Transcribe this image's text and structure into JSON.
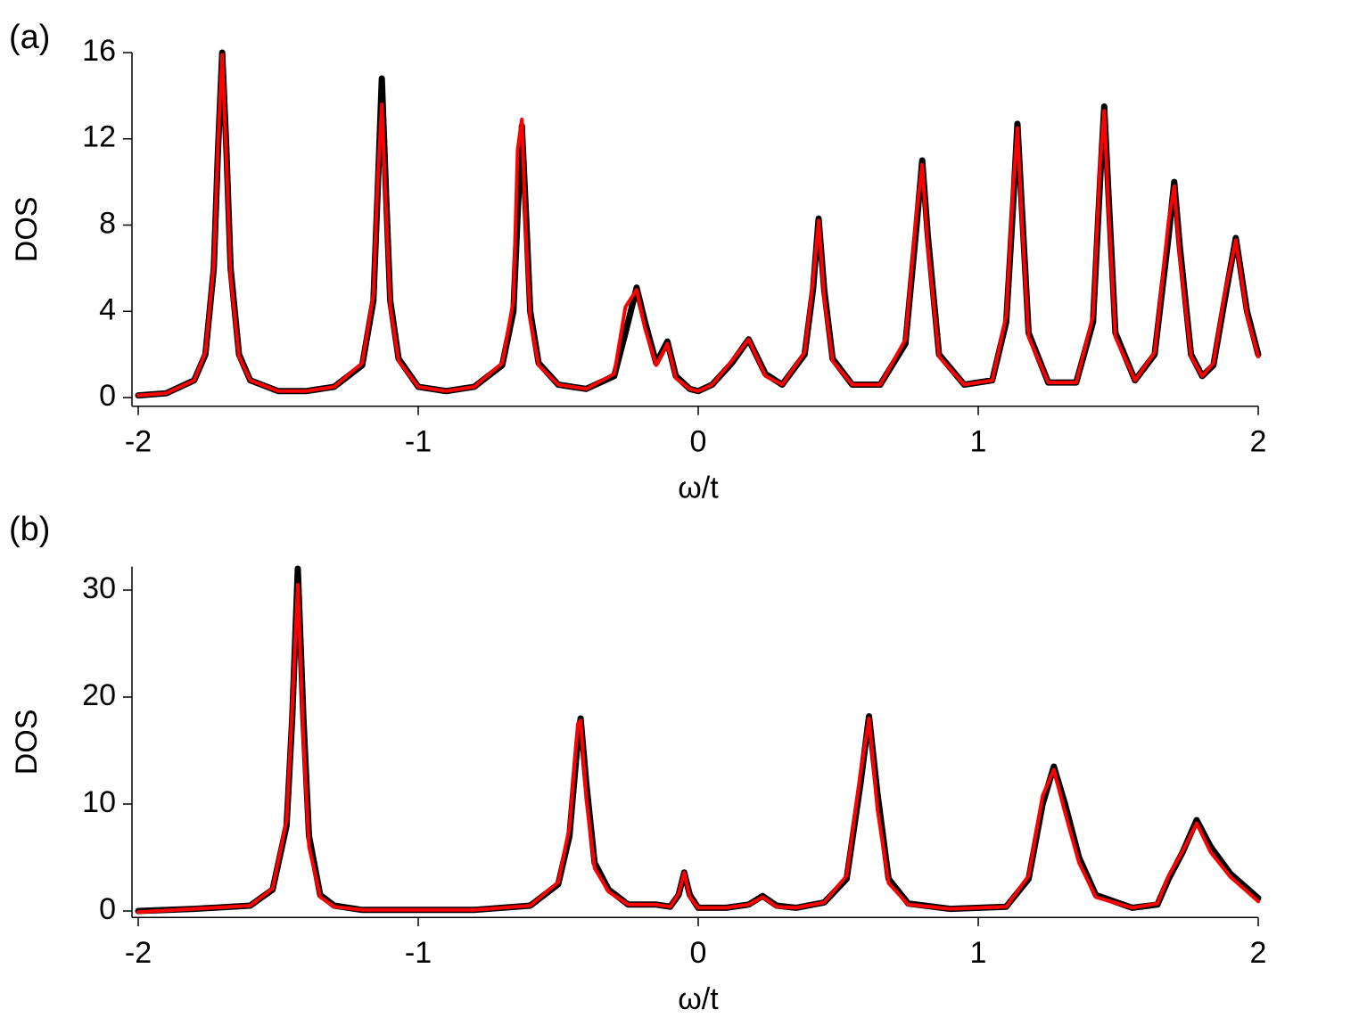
{
  "chart_data": [
    {
      "type": "line",
      "panel_label": "(a)",
      "x_label": "ω/t",
      "y_label": "DOS",
      "xlim": [
        -2,
        2
      ],
      "ylim": [
        -0.4,
        16
      ],
      "xticks": [
        -2,
        -1,
        0,
        1,
        2
      ],
      "yticks": [
        0,
        4,
        8,
        12,
        16
      ],
      "x": [
        -2.0,
        -1.9,
        -1.8,
        -1.76,
        -1.73,
        -1.715,
        -1.7,
        -1.685,
        -1.67,
        -1.64,
        -1.6,
        -1.5,
        -1.4,
        -1.3,
        -1.2,
        -1.16,
        -1.145,
        -1.13,
        -1.115,
        -1.1,
        -1.07,
        -1.0,
        -0.9,
        -0.8,
        -0.7,
        -0.66,
        -0.645,
        -0.63,
        -0.615,
        -0.6,
        -0.57,
        -0.5,
        -0.4,
        -0.3,
        -0.26,
        -0.22,
        -0.19,
        -0.15,
        -0.11,
        -0.08,
        -0.03,
        0.0,
        0.05,
        0.12,
        0.18,
        0.24,
        0.3,
        0.38,
        0.41,
        0.43,
        0.45,
        0.48,
        0.55,
        0.65,
        0.74,
        0.78,
        0.8,
        0.82,
        0.86,
        0.95,
        1.05,
        1.1,
        1.125,
        1.14,
        1.155,
        1.18,
        1.25,
        1.35,
        1.41,
        1.435,
        1.45,
        1.465,
        1.49,
        1.56,
        1.63,
        1.68,
        1.7,
        1.72,
        1.76,
        1.8,
        1.84,
        1.88,
        1.92,
        1.96,
        2.0
      ],
      "series": [
        {
          "color": "#000000",
          "values": [
            0.1,
            0.2,
            0.8,
            2.0,
            6.0,
            11.5,
            16,
            11.5,
            6.0,
            2.0,
            0.8,
            0.3,
            0.3,
            0.5,
            1.5,
            4.5,
            9.5,
            14.8,
            9.5,
            4.5,
            1.8,
            0.5,
            0.3,
            0.5,
            1.5,
            4.0,
            8.5,
            12.6,
            8.5,
            4.0,
            1.6,
            0.6,
            0.4,
            1.0,
            3.0,
            5.1,
            3.5,
            1.6,
            2.6,
            1.0,
            0.4,
            0.3,
            0.6,
            1.6,
            2.7,
            1.1,
            0.6,
            2.0,
            5.0,
            8.3,
            5.0,
            1.8,
            0.6,
            0.6,
            2.5,
            8.0,
            11.0,
            7.5,
            2.0,
            0.6,
            0.8,
            3.5,
            9.0,
            12.7,
            9.0,
            3.0,
            0.7,
            0.7,
            3.5,
            10.0,
            13.5,
            9.5,
            3.0,
            0.8,
            2.0,
            7.5,
            10.0,
            7.0,
            2.0,
            1.0,
            1.5,
            4.5,
            7.4,
            4.0,
            2.0
          ]
        },
        {
          "color": "#ff0000",
          "values": [
            0.1,
            0.2,
            0.8,
            2.1,
            6.2,
            11.8,
            15.9,
            11.0,
            5.6,
            1.9,
            0.8,
            0.3,
            0.3,
            0.5,
            1.6,
            4.8,
            10.0,
            13.6,
            8.8,
            4.2,
            1.7,
            0.5,
            0.3,
            0.5,
            1.6,
            4.5,
            11.5,
            12.9,
            7.5,
            3.6,
            1.5,
            0.6,
            0.4,
            1.1,
            4.2,
            5.0,
            3.2,
            1.5,
            2.5,
            0.9,
            0.4,
            0.3,
            0.6,
            1.7,
            2.7,
            1.0,
            0.6,
            2.1,
            5.4,
            8.2,
            4.6,
            1.7,
            0.6,
            0.6,
            2.7,
            8.6,
            10.8,
            7.0,
            1.9,
            0.6,
            0.8,
            3.8,
            9.8,
            12.5,
            8.4,
            2.8,
            0.7,
            0.7,
            3.8,
            10.8,
            13.3,
            8.8,
            2.8,
            0.8,
            2.1,
            8.2,
            9.8,
            6.5,
            1.9,
            1.0,
            1.6,
            4.8,
            7.3,
            3.8,
            1.9
          ]
        }
      ]
    },
    {
      "type": "line",
      "panel_label": "(b)",
      "x_label": "ω/t",
      "y_label": "DOS",
      "xlim": [
        -2,
        2
      ],
      "ylim": [
        -0.6,
        32.2
      ],
      "xticks": [
        -2,
        -1,
        0,
        1,
        2
      ],
      "yticks": [
        0,
        10,
        20,
        30
      ],
      "x": [
        -2.0,
        -1.8,
        -1.6,
        -1.52,
        -1.47,
        -1.45,
        -1.43,
        -1.41,
        -1.39,
        -1.35,
        -1.3,
        -1.2,
        -1.0,
        -0.8,
        -0.6,
        -0.5,
        -0.46,
        -0.43,
        -0.42,
        -0.4,
        -0.37,
        -0.32,
        -0.25,
        -0.15,
        -0.1,
        -0.07,
        -0.05,
        -0.03,
        0.0,
        0.1,
        0.18,
        0.23,
        0.28,
        0.35,
        0.45,
        0.53,
        0.58,
        0.61,
        0.64,
        0.68,
        0.75,
        0.9,
        1.1,
        1.18,
        1.23,
        1.27,
        1.31,
        1.36,
        1.42,
        1.55,
        1.64,
        1.68,
        1.73,
        1.78,
        1.83,
        1.9,
        2.0
      ],
      "series": [
        {
          "color": "#000000",
          "values": [
            0,
            0.2,
            0.5,
            2.0,
            8.0,
            18,
            32,
            18,
            7.0,
            1.5,
            0.5,
            0.1,
            0.1,
            0.1,
            0.5,
            2.5,
            7.0,
            16,
            18,
            12,
            4.5,
            2.0,
            0.6,
            0.6,
            0.4,
            1.5,
            3.6,
            1.5,
            0.3,
            0.3,
            0.6,
            1.4,
            0.5,
            0.3,
            0.8,
            3.0,
            12,
            18.2,
            11,
            3.0,
            0.7,
            0.2,
            0.4,
            3.0,
            10,
            13.5,
            10,
            5.0,
            1.5,
            0.3,
            0.6,
            3.0,
            5.5,
            8.5,
            6.0,
            3.5,
            1.2
          ]
        },
        {
          "color": "#ff0000",
          "values": [
            -0.1,
            0.2,
            0.5,
            2.1,
            8.5,
            19,
            30.5,
            16,
            6.0,
            1.3,
            0.4,
            0.1,
            0.1,
            0.1,
            0.5,
            2.7,
            7.8,
            17.5,
            17.8,
            10.5,
            4.0,
            1.8,
            0.6,
            0.6,
            0.4,
            1.6,
            3.6,
            1.3,
            0.3,
            0.3,
            0.6,
            1.3,
            0.4,
            0.3,
            0.8,
            3.3,
            13,
            18,
            9.5,
            2.6,
            0.6,
            0.2,
            0.4,
            3.3,
            10.8,
            13.2,
            9.2,
            4.5,
            1.3,
            0.3,
            0.7,
            3.3,
            5.6,
            8.2,
            5.5,
            3.2,
            0.9
          ]
        }
      ]
    }
  ]
}
